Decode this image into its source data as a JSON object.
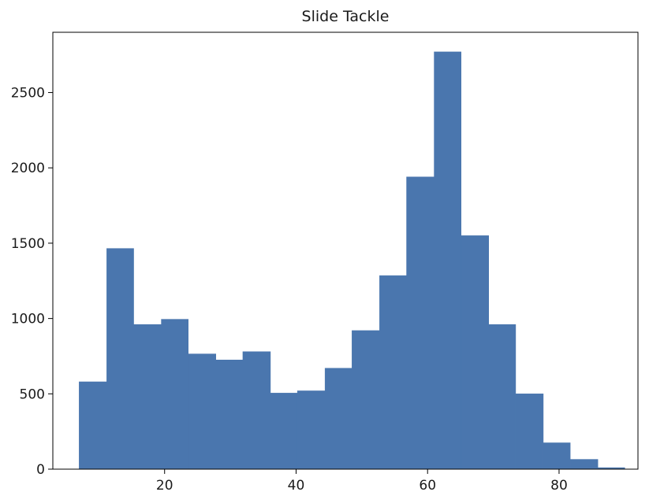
{
  "chart_data": {
    "type": "bar",
    "title": "Slide Tackle",
    "xlabel": "",
    "ylabel": "",
    "xlim": [
      3,
      92
    ],
    "ylim": [
      0,
      2900
    ],
    "x_ticks": [
      20,
      40,
      60,
      80
    ],
    "y_ticks": [
      0,
      500,
      1000,
      1500,
      2000,
      2500
    ],
    "bins": [
      {
        "x0": 7.0,
        "x1": 11.2,
        "value": 580
      },
      {
        "x0": 11.2,
        "x1": 15.3,
        "value": 1465
      },
      {
        "x0": 15.3,
        "x1": 19.5,
        "value": 960
      },
      {
        "x0": 19.5,
        "x1": 23.6,
        "value": 995
      },
      {
        "x0": 23.6,
        "x1": 27.8,
        "value": 765
      },
      {
        "x0": 27.8,
        "x1": 31.9,
        "value": 725
      },
      {
        "x0": 31.9,
        "x1": 36.1,
        "value": 780
      },
      {
        "x0": 36.1,
        "x1": 40.2,
        "value": 505
      },
      {
        "x0": 40.2,
        "x1": 44.4,
        "value": 520
      },
      {
        "x0": 44.4,
        "x1": 48.5,
        "value": 670
      },
      {
        "x0": 48.5,
        "x1": 52.7,
        "value": 920
      },
      {
        "x0": 52.7,
        "x1": 56.8,
        "value": 1285
      },
      {
        "x0": 56.8,
        "x1": 61.0,
        "value": 1940
      },
      {
        "x0": 61.0,
        "x1": 65.1,
        "value": 2770
      },
      {
        "x0": 65.1,
        "x1": 69.3,
        "value": 1550
      },
      {
        "x0": 69.3,
        "x1": 73.4,
        "value": 960
      },
      {
        "x0": 73.4,
        "x1": 77.6,
        "value": 500
      },
      {
        "x0": 77.6,
        "x1": 81.7,
        "value": 175
      },
      {
        "x0": 81.7,
        "x1": 85.9,
        "value": 65
      },
      {
        "x0": 85.9,
        "x1": 90.0,
        "value": 10
      }
    ],
    "bar_color": "#4a76ae",
    "grid": false,
    "legend": "none"
  }
}
